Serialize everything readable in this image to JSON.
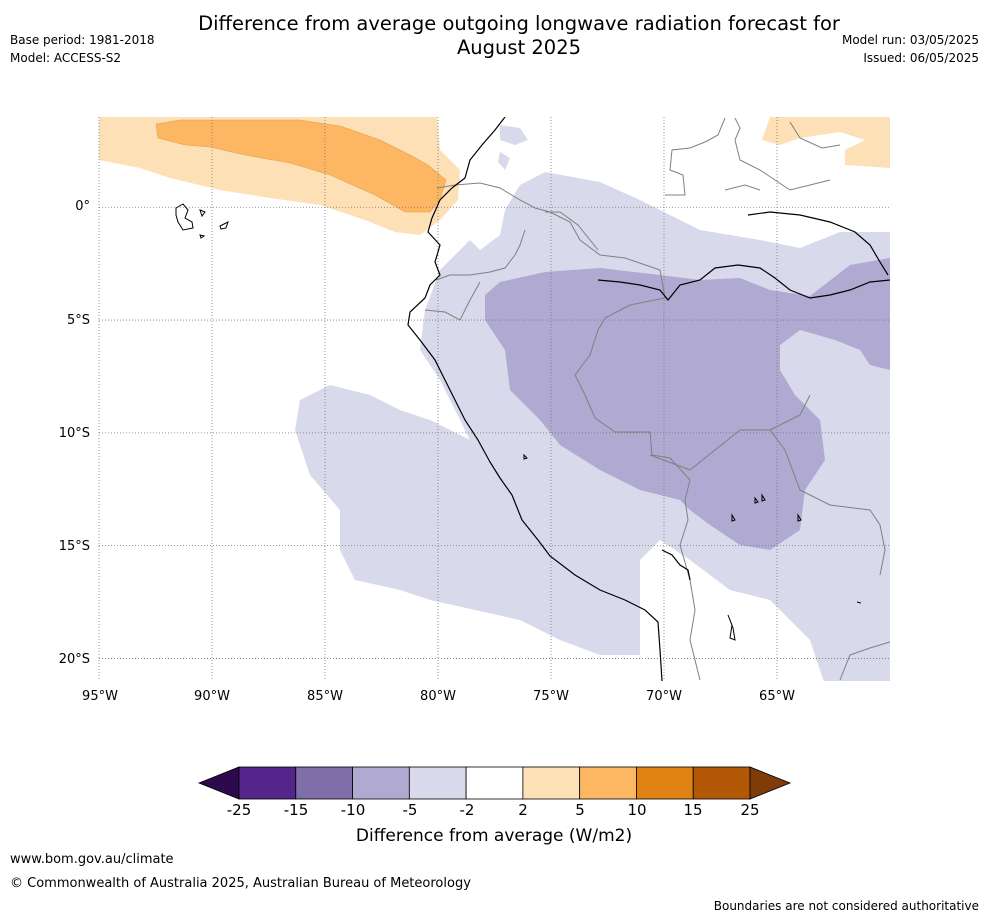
{
  "title_line1": "Difference from average outgoing longwave radiation forecast for",
  "title_line2": "August 2025",
  "meta": {
    "base_period": "Base period: 1981-2018",
    "model": "Model: ACCESS-S2",
    "model_run": "Model run: 03/05/2025",
    "issued": "Issued: 06/05/2025"
  },
  "map": {
    "lat_labels": [
      "0°",
      "5°S",
      "10°S",
      "15°S",
      "20°S"
    ],
    "lon_labels": [
      "95°W",
      "90°W",
      "85°W",
      "80°W",
      "75°W",
      "70°W",
      "65°W"
    ],
    "lat_values": [
      0,
      -5,
      -10,
      -15,
      -20
    ],
    "lon_values": [
      -95,
      -90,
      -85,
      -80,
      -75,
      -70,
      -65
    ],
    "extent": {
      "lon_min": -95,
      "lon_max": -60,
      "lat_min": -21,
      "lat_max": 4
    }
  },
  "colorbar": {
    "ticks": [
      "-25",
      "-15",
      "-10",
      "-5",
      "-2",
      "2",
      "5",
      "10",
      "15",
      "25"
    ],
    "colors": [
      "#2d0a4e",
      "#54258a",
      "#7f6fa9",
      "#b0a9d1",
      "#d8d9ea",
      "#ffffff",
      "#fee0b6",
      "#fdb762",
      "#e08214",
      "#b35806",
      "#7f3b08"
    ],
    "label": "Difference from average (W/m2)"
  },
  "footer": {
    "website": "www.bom.gov.au/climate",
    "copyright": "© Commonwealth of Australia 2025, Australian Bureau of Meteorology",
    "disclaimer": "Boundaries are not considered authoritative"
  }
}
